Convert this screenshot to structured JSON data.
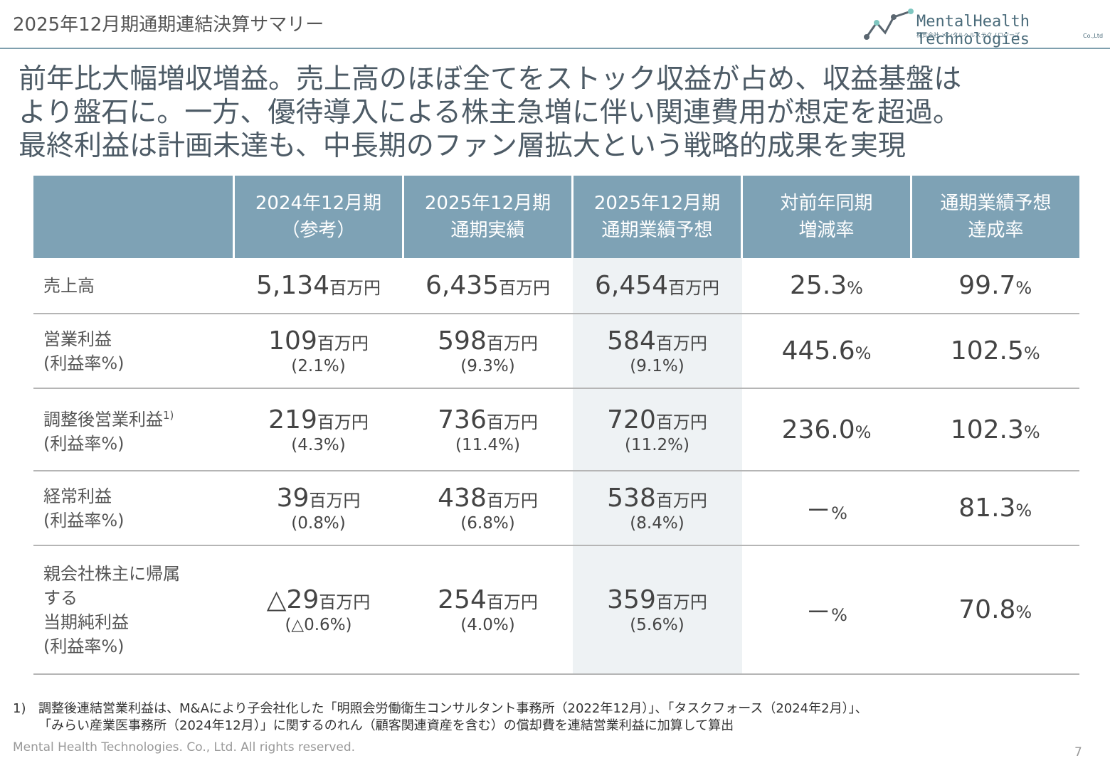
{
  "header": {
    "title": "2025年12月期通期連結決算サマリー",
    "logo": {
      "name": "MentalHealth Technologies",
      "sub": "株式会社 メンタルヘルステクノロジーズ",
      "suffix": "Co.,Ltd"
    }
  },
  "headline": [
    "前年比大幅増収増益。売上高のほぼ全てをストック収益が占め、収益基盤は",
    "より盤石に。一方、優待導入による株主急増に伴い関連費用が想定を超過。",
    "最終利益は計画未達も、中長期のファン層拡大という戦略的成果を実現"
  ],
  "table": {
    "columns": [
      [
        "2024年12月期",
        "（参考）"
      ],
      [
        "2025年12月期",
        "通期実績"
      ],
      [
        "2025年12月期",
        "通期業績予想"
      ],
      [
        "対前年同期",
        "増減率"
      ],
      [
        "通期業績予想",
        "達成率"
      ]
    ],
    "rows": [
      {
        "label": [
          "売上高"
        ],
        "cells": [
          {
            "value": "5,134",
            "unit": "百万円"
          },
          {
            "value": "6,435",
            "unit": "百万円"
          },
          {
            "value": "6,454",
            "unit": "百万円"
          },
          {
            "value": "25.3",
            "unit": "%"
          },
          {
            "value": "99.7",
            "unit": "%"
          }
        ]
      },
      {
        "label": [
          "営業利益",
          "(利益率%)"
        ],
        "cells": [
          {
            "value": "109",
            "unit": "百万円",
            "sub": "(2.1%)"
          },
          {
            "value": "598",
            "unit": "百万円",
            "sub": "(9.3%)"
          },
          {
            "value": "584",
            "unit": "百万円",
            "sub": "(9.1%)"
          },
          {
            "value": "445.6",
            "unit": "%"
          },
          {
            "value": "102.5",
            "unit": "%"
          }
        ]
      },
      {
        "label": [
          "調整後営業利益",
          "(利益率%)"
        ],
        "note": "1)",
        "cells": [
          {
            "value": "219",
            "unit": "百万円",
            "sub": "(4.3%)"
          },
          {
            "value": "736",
            "unit": "百万円",
            "sub": "(11.4%)"
          },
          {
            "value": "720",
            "unit": "百万円",
            "sub": "(11.2%)"
          },
          {
            "value": "236.0",
            "unit": "%"
          },
          {
            "value": "102.3",
            "unit": "%"
          }
        ]
      },
      {
        "label": [
          "経常利益",
          "(利益率%)"
        ],
        "cells": [
          {
            "value": "39",
            "unit": "百万円",
            "sub": "(0.8%)"
          },
          {
            "value": "438",
            "unit": "百万円",
            "sub": "(6.8%)"
          },
          {
            "value": "538",
            "unit": "百万円",
            "sub": "(8.4%)"
          },
          {
            "value": "－",
            "unit": "%"
          },
          {
            "value": "81.3",
            "unit": "%"
          }
        ]
      },
      {
        "label": [
          "親会社株主に帰属",
          "する",
          "当期純利益",
          "(利益率%)"
        ],
        "cells": [
          {
            "value": "△29",
            "unit": "百万円",
            "sub": "(△0.6%)"
          },
          {
            "value": "254",
            "unit": "百万円",
            "sub": "(4.0%)"
          },
          {
            "value": "359",
            "unit": "百万円",
            "sub": "(5.6%)"
          },
          {
            "value": "－",
            "unit": "%"
          },
          {
            "value": "70.8",
            "unit": "%"
          }
        ]
      }
    ]
  },
  "footnote": {
    "marker": "1)",
    "lines": [
      "調整後連結営業利益は、M&Aにより子会社化した「明照会労働衛生コンサルタント事務所（2022年12月）」、「タスクフォース（2024年2月）」、",
      "「みらい産業医事務所（2024年12月）」に関するのれん（顧客関連資産を含む）の償却費を連結営業利益に加算して算出"
    ]
  },
  "footer": {
    "copyright": "Mental Health Technologies. Co., Ltd. All rights reserved.",
    "page": "7"
  }
}
